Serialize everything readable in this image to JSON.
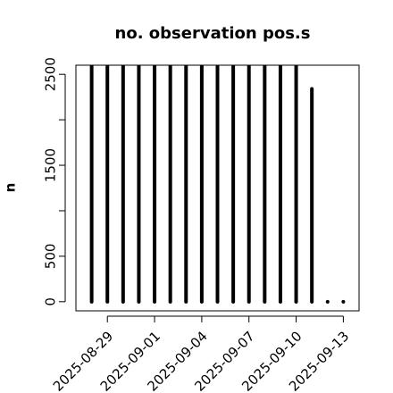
{
  "chart_data": {
    "type": "histogram-lines",
    "title": "no. observation pos.s",
    "ylabel": "n",
    "x": [
      "2025-08-28",
      "2025-08-29",
      "2025-08-30",
      "2025-08-31",
      "2025-09-01",
      "2025-09-02",
      "2025-09-03",
      "2025-09-04",
      "2025-09-05",
      "2025-09-06",
      "2025-09-07",
      "2025-09-08",
      "2025-09-09",
      "2025-09-10",
      "2025-09-11",
      "2025-09-12",
      "2025-09-13"
    ],
    "values": [
      2600,
      2600,
      2600,
      2600,
      2600,
      2600,
      2600,
      2600,
      2600,
      2600,
      2600,
      2600,
      2600,
      2600,
      2340,
      0,
      0
    ],
    "color": "#000000",
    "xlim": [
      "2025-08-27",
      "2025-09-14"
    ],
    "xticks": [
      "2025-08-29",
      "2025-09-01",
      "2025-09-04",
      "2025-09-07",
      "2025-09-10",
      "2025-09-13"
    ],
    "highlight_xtick": "2025-09-04",
    "highlight_color": "#228b22",
    "ylim": [
      -100,
      2600
    ],
    "yticks": [
      0,
      500,
      1500,
      2500
    ],
    "yticks_unlabeled": [
      1000,
      2000
    ]
  }
}
